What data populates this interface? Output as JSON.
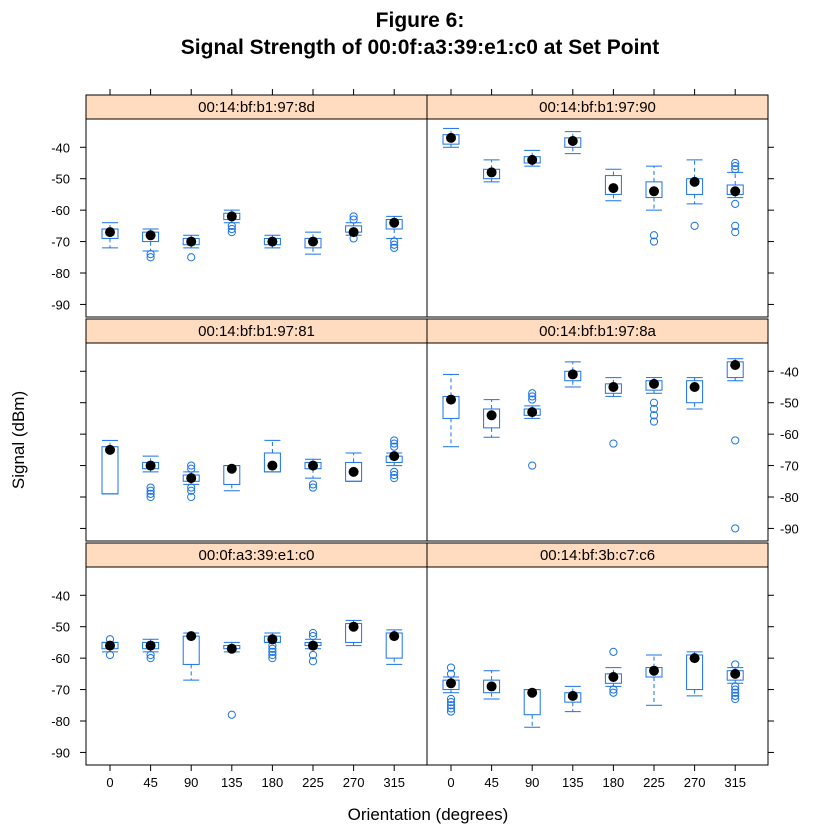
{
  "title_lines": [
    "Figure 6:",
    "Signal Strength of 00:0f:a3:39:e1:c0 at Set Point"
  ],
  "colors": {
    "box": "#1a73e8",
    "strip": "#ffdcc0",
    "median": "#000000",
    "frame": "#000000"
  },
  "chart_data": {
    "type": "boxplot-panels",
    "xlabel": "Orientation (degrees)",
    "ylabel": "Signal (dBm)",
    "categories": [
      0,
      45,
      90,
      135,
      180,
      225,
      270,
      315
    ],
    "yticks": [
      -40,
      -50,
      -60,
      -70,
      -80,
      -90
    ],
    "ylim": [
      -94,
      -31
    ],
    "layout": "2 columns x 3 rows",
    "panels": [
      {
        "mac": "00:14:bf:b1:97:8d",
        "boxes": [
          {
            "lw": -72,
            "q1": -69,
            "med": -67,
            "q3": -66,
            "uw": -64,
            "out": []
          },
          {
            "lw": -73,
            "q1": -70,
            "med": -68,
            "q3": -67,
            "uw": -66,
            "out": [
              -74,
              -75
            ]
          },
          {
            "lw": -72,
            "q1": -71,
            "med": -70,
            "q3": -69,
            "uw": -68,
            "out": [
              -75
            ]
          },
          {
            "lw": -64,
            "q1": -63,
            "med": -62,
            "q3": -61,
            "uw": -60,
            "out": [
              -65,
              -66,
              -67
            ]
          },
          {
            "lw": -72,
            "q1": -71,
            "med": -70,
            "q3": -69,
            "uw": -68,
            "out": []
          },
          {
            "lw": -74,
            "q1": -72,
            "med": -70,
            "q3": -69,
            "uw": -67,
            "out": []
          },
          {
            "lw": -68,
            "q1": -67,
            "med": -67,
            "q3": -65,
            "uw": -64,
            "out": [
              -69,
              -62,
              -63
            ]
          },
          {
            "lw": -69,
            "q1": -66,
            "med": -64,
            "q3": -63,
            "uw": -62,
            "out": [
              -70,
              -71,
              -72
            ]
          }
        ]
      },
      {
        "mac": "00:14:bf:b1:97:90",
        "boxes": [
          {
            "lw": -40,
            "q1": -39,
            "med": -37,
            "q3": -36,
            "uw": -34,
            "out": []
          },
          {
            "lw": -51,
            "q1": -50,
            "med": -48,
            "q3": -47,
            "uw": -44,
            "out": []
          },
          {
            "lw": -46,
            "q1": -45,
            "med": -44,
            "q3": -43,
            "uw": -41,
            "out": []
          },
          {
            "lw": -42,
            "q1": -40,
            "med": -38,
            "q3": -37,
            "uw": -35,
            "out": []
          },
          {
            "lw": -57,
            "q1": -55,
            "med": -53,
            "q3": -49,
            "uw": -47,
            "out": []
          },
          {
            "lw": -60,
            "q1": -56,
            "med": -54,
            "q3": -51,
            "uw": -46,
            "out": [
              -68,
              -70
            ]
          },
          {
            "lw": -58,
            "q1": -55,
            "med": -51,
            "q3": -50,
            "uw": -44,
            "out": [
              -65
            ]
          },
          {
            "lw": -56,
            "q1": -55,
            "med": -54,
            "q3": -52,
            "uw": -48,
            "out": [
              -45,
              -46,
              -47,
              -58,
              -65,
              -67
            ]
          }
        ]
      },
      {
        "mac": "00:14:bf:b1:97:81",
        "boxes": [
          {
            "lw": -79,
            "q1": -79,
            "med": -65,
            "q3": -64,
            "uw": -62,
            "out": []
          },
          {
            "lw": -72,
            "q1": -71,
            "med": -70,
            "q3": -69,
            "uw": -67,
            "out": [
              -77,
              -78,
              -79,
              -80
            ]
          },
          {
            "lw": -76,
            "q1": -75,
            "med": -74,
            "q3": -73,
            "uw": -72,
            "out": [
              -70,
              -71,
              -77,
              -78,
              -80
            ]
          },
          {
            "lw": -78,
            "q1": -76,
            "med": -71,
            "q3": -70,
            "uw": -70,
            "out": []
          },
          {
            "lw": -72,
            "q1": -72,
            "med": -70,
            "q3": -66,
            "uw": -62,
            "out": []
          },
          {
            "lw": -74,
            "q1": -71,
            "med": -70,
            "q3": -69,
            "uw": -68,
            "out": [
              -76,
              -77
            ]
          },
          {
            "lw": -75,
            "q1": -75,
            "med": -72,
            "q3": -69,
            "uw": -66,
            "out": []
          },
          {
            "lw": -70,
            "q1": -69,
            "med": -67,
            "q3": -67,
            "uw": -66,
            "out": [
              -62,
              -63,
              -64,
              -72,
              -73,
              -74
            ]
          }
        ]
      },
      {
        "mac": "00:14:bf:b1:97:8a",
        "boxes": [
          {
            "lw": -64,
            "q1": -55,
            "med": -49,
            "q3": -48,
            "uw": -41,
            "out": []
          },
          {
            "lw": -61,
            "q1": -58,
            "med": -54,
            "q3": -52,
            "uw": -49,
            "out": []
          },
          {
            "lw": -55,
            "q1": -54,
            "med": -53,
            "q3": -52,
            "uw": -51,
            "out": [
              -47,
              -48,
              -49,
              -70
            ]
          },
          {
            "lw": -45,
            "q1": -43,
            "med": -41,
            "q3": -40,
            "uw": -37,
            "out": []
          },
          {
            "lw": -48,
            "q1": -47,
            "med": -45,
            "q3": -44,
            "uw": -42,
            "out": [
              -63
            ]
          },
          {
            "lw": -47,
            "q1": -46,
            "med": -44,
            "q3": -43,
            "uw": -42,
            "out": [
              -50,
              -52,
              -54,
              -56
            ]
          },
          {
            "lw": -52,
            "q1": -50,
            "med": -45,
            "q3": -43,
            "uw": -42,
            "out": []
          },
          {
            "lw": -43,
            "q1": -42,
            "med": -38,
            "q3": -37,
            "uw": -36,
            "out": [
              -62,
              -90
            ]
          }
        ]
      },
      {
        "mac": "00:0f:a3:39:e1:c0",
        "boxes": [
          {
            "lw": -58,
            "q1": -57,
            "med": -56,
            "q3": -55,
            "uw": -55,
            "out": [
              -54,
              -59
            ]
          },
          {
            "lw": -58,
            "q1": -57,
            "med": -56,
            "q3": -55,
            "uw": -54,
            "out": [
              -59,
              -60
            ]
          },
          {
            "lw": -67,
            "q1": -62,
            "med": -53,
            "q3": -53,
            "uw": -52,
            "out": []
          },
          {
            "lw": -58,
            "q1": -57,
            "med": -57,
            "q3": -56,
            "uw": -55,
            "out": [
              -78
            ]
          },
          {
            "lw": -55,
            "q1": -55,
            "med": -54,
            "q3": -53,
            "uw": -52,
            "out": [
              -56,
              -57,
              -58,
              -59,
              -60
            ]
          },
          {
            "lw": -57,
            "q1": -56,
            "med": -56,
            "q3": -55,
            "uw": -54,
            "out": [
              -52,
              -53,
              -59,
              -61
            ]
          },
          {
            "lw": -56,
            "q1": -55,
            "med": -50,
            "q3": -49,
            "uw": -48,
            "out": []
          },
          {
            "lw": -62,
            "q1": -60,
            "med": -53,
            "q3": -52,
            "uw": -51,
            "out": []
          }
        ]
      },
      {
        "mac": "00:14:bf:3b:c7:c6",
        "boxes": [
          {
            "lw": -71,
            "q1": -70,
            "med": -68,
            "q3": -67,
            "uw": -66,
            "out": [
              -63,
              -65,
              -73,
              -74,
              -75,
              -76,
              -77
            ]
          },
          {
            "lw": -73,
            "q1": -71,
            "med": -69,
            "q3": -67,
            "uw": -64,
            "out": []
          },
          {
            "lw": -82,
            "q1": -78,
            "med": -71,
            "q3": -70,
            "uw": -70,
            "out": []
          },
          {
            "lw": -77,
            "q1": -74,
            "med": -72,
            "q3": -71,
            "uw": -69,
            "out": []
          },
          {
            "lw": -69,
            "q1": -68,
            "med": -66,
            "q3": -65,
            "uw": -63,
            "out": [
              -58,
              -70,
              -71
            ]
          },
          {
            "lw": -75,
            "q1": -66,
            "med": -64,
            "q3": -63,
            "uw": -59,
            "out": []
          },
          {
            "lw": -72,
            "q1": -70,
            "med": -60,
            "q3": -59,
            "uw": -58,
            "out": []
          },
          {
            "lw": -68,
            "q1": -67,
            "med": -65,
            "q3": -64,
            "uw": -63,
            "out": [
              -62,
              -69,
              -70,
              -71,
              -72,
              -73
            ]
          }
        ]
      }
    ]
  }
}
